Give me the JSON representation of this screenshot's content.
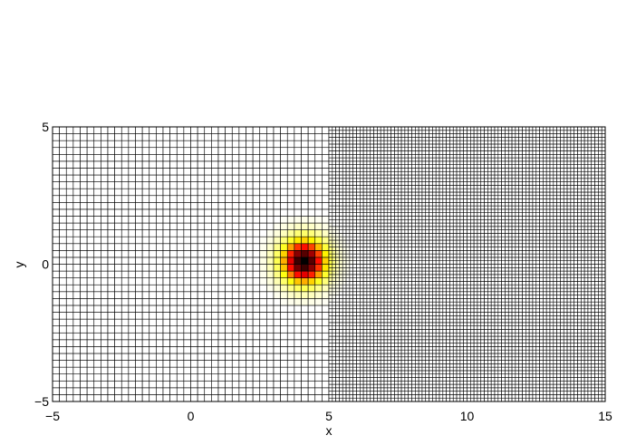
{
  "chart_data": {
    "type": "heatmap",
    "title": "",
    "xlabel": "x",
    "ylabel": "y",
    "xlim": [
      -5,
      15
    ],
    "ylim": [
      -5,
      5
    ],
    "xticks": [
      "-5",
      "0",
      "5",
      "10",
      "15"
    ],
    "yticks": [
      "-5",
      "0",
      "5"
    ],
    "grid_regions": [
      {
        "x_range": [
          -5,
          5
        ],
        "y_range": [
          -5,
          5
        ],
        "spacing": 0.25
      },
      {
        "x_range": [
          5,
          15
        ],
        "y_range": [
          -5,
          5
        ],
        "spacing": 0.125
      }
    ],
    "field": {
      "shape": "gaussian",
      "center": [
        4.1,
        0.1
      ],
      "width": 0.8,
      "peak": 1
    },
    "colormap": "hot (reversed: white-yellow-red-black)",
    "edge_color": "#000000",
    "legend": "none"
  }
}
